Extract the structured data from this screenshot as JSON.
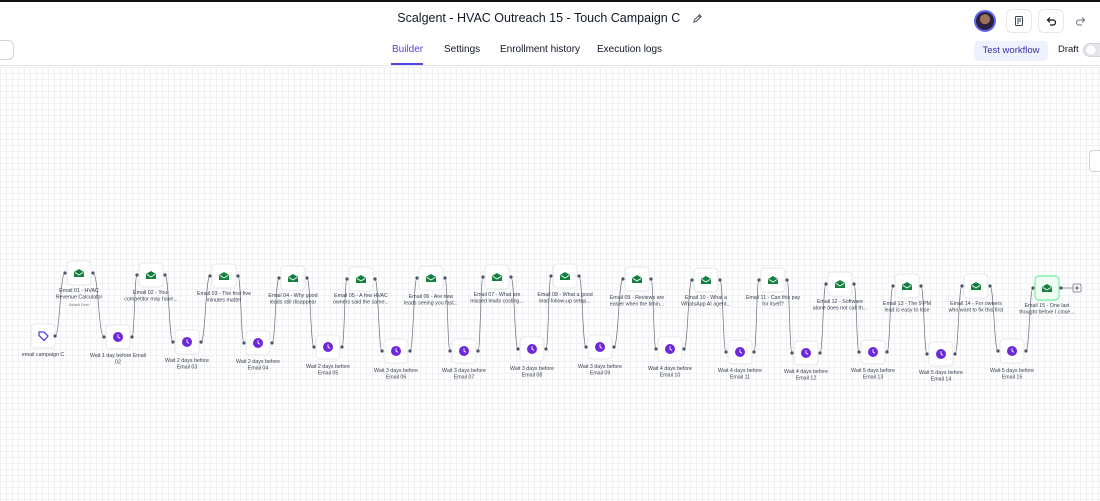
{
  "header": {
    "title": "Scalgent - HVAC Outreach 15 - Touch Campaign C",
    "edit_icon": "pencil-icon",
    "avatar": "user-avatar",
    "actions": [
      "notes-icon",
      "undo-icon",
      "redo-icon"
    ]
  },
  "tabs": [
    {
      "label": "Builder",
      "active": true
    },
    {
      "label": "Settings",
      "active": false
    },
    {
      "label": "Enrollment history",
      "active": false
    },
    {
      "label": "Execution logs",
      "active": false
    }
  ],
  "controls": {
    "test_button": "Test workflow",
    "draft_label": "Draft",
    "draft_on": false
  },
  "colors": {
    "accent": "#4f46e5",
    "email_icon": "#15803d",
    "wait_icon": "#6d28d9",
    "connector": "#6b7280"
  },
  "trigger": {
    "label": "email campaign C",
    "icon": "tag-icon"
  },
  "emails": [
    {
      "label": [
        "Email 01 - HVAC",
        "Revenue Calculator"
      ],
      "sub": "Default From"
    },
    {
      "label": [
        "Email 02 - Your",
        "competitor may have..."
      ]
    },
    {
      "label": [
        "Email 03 - The first five",
        "minutes matter"
      ]
    },
    {
      "label": [
        "Email 04 - Why good",
        "leads still disappear"
      ]
    },
    {
      "label": [
        "Email 05 - A few HVAC",
        "owners said the same..."
      ]
    },
    {
      "label": [
        "Email 06 - Are new",
        "leads seeing you fast..."
      ]
    },
    {
      "label": [
        "Email 07 - What are",
        "missed leads costing..."
      ]
    },
    {
      "label": [
        "Email 08 - What a good",
        "lead follow-up setup..."
      ]
    },
    {
      "label": [
        "Email 09 - Reviews are",
        "easier when the timin..."
      ]
    },
    {
      "label": [
        "Email 10 - What a",
        "WhatsApp AI agent..."
      ]
    },
    {
      "label": [
        "Email 11 - Can this pay",
        "for itself?"
      ]
    },
    {
      "label": [
        "Email 12 - Software",
        "alone does not call th..."
      ]
    },
    {
      "label": [
        "Email 13 - The 9 PM",
        "lead is easy to lose"
      ]
    },
    {
      "label": [
        "Email 14 - For owners",
        "who want to fix this first"
      ]
    },
    {
      "label": [
        "Email 15 - One last",
        "thought before I close..."
      ]
    }
  ],
  "waits": [
    {
      "label": [
        "Wait 1 day before Email",
        "02"
      ]
    },
    {
      "label": [
        "Wait 2 days before",
        "Email 03"
      ]
    },
    {
      "label": [
        "Wait 2 days before",
        "Email 04"
      ]
    },
    {
      "label": [
        "Wait 2 days before",
        "Email 05"
      ]
    },
    {
      "label": [
        "Wait 3 days before",
        "Email 06"
      ]
    },
    {
      "label": [
        "Wait 3 days before",
        "Email 07"
      ]
    },
    {
      "label": [
        "Wait 3 days before",
        "Email 08"
      ]
    },
    {
      "label": [
        "Wait 3 days before",
        "Email 09"
      ]
    },
    {
      "label": [
        "Wait 4 days before",
        "Email 10"
      ]
    },
    {
      "label": [
        "Wait 4 days before",
        "Email 11"
      ]
    },
    {
      "label": [
        "Wait 4 days before",
        "Email 12"
      ]
    },
    {
      "label": [
        "Wait 5 days before",
        "Email 13"
      ]
    },
    {
      "label": [
        "Wait 5 days before",
        "Email 14"
      ]
    },
    {
      "label": [
        "Wait 5 days before",
        "Email 15"
      ]
    }
  ]
}
